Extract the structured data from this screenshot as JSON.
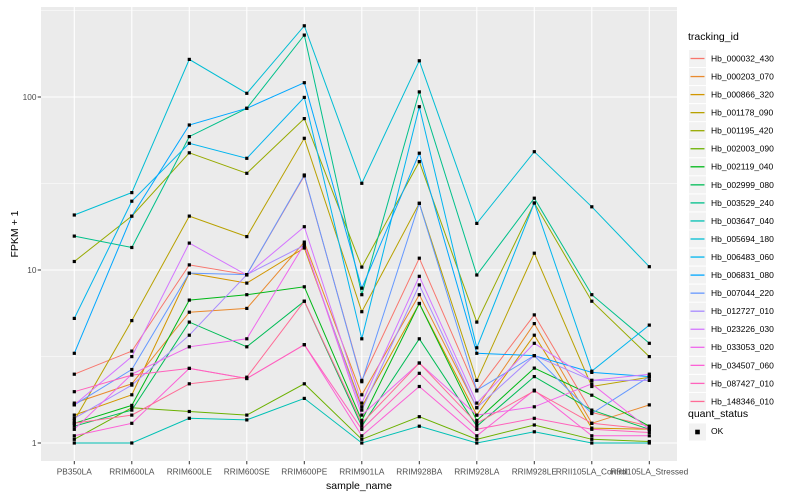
{
  "figure": {
    "background": "#FFFFFF",
    "panel_background": "#EBEBEB",
    "grid_color": "#FFFFFF",
    "axis_text_color": "#4D4D4D",
    "axis_title_color": "#000000",
    "legend_key_background": "#F2F2F2",
    "point_color": "#000000"
  },
  "legend": {
    "tracking_title": "tracking_id",
    "quant_title": "quant_status",
    "quant_items": [
      {
        "label": "OK",
        "marker": "filled-square-icon"
      }
    ]
  },
  "chart_data": {
    "type": "line",
    "title": "",
    "xlabel": "sample_name",
    "ylabel": "FPKM + 1",
    "y_scale": "log10",
    "ylim": [
      0.79,
      330
    ],
    "grid": true,
    "legend_position": "right",
    "point_shape": "filled-square",
    "y_ticks": {
      "values": [
        1,
        10,
        100
      ],
      "labels": [
        "1",
        "10",
        "100"
      ]
    },
    "y_minor_gridlines": [
      3.162,
      31.62,
      316.2
    ],
    "categories": [
      "PB350LA",
      "RRIM600LA",
      "RRIM600LE",
      "RRIM600SE",
      "RRIM600PE",
      "RRIM901LA",
      "RRIM928BA",
      "RRIM928LA",
      "RRIM928LE",
      "RRII105LA_Control",
      "RRII105LA_Stressed"
    ],
    "series": [
      {
        "name": "Hb_000032_430",
        "color": "#F8766D",
        "values": [
          2.5,
          3.4,
          10.7,
          9.4,
          35,
          2.3,
          11.7,
          2.0,
          5.5,
          1.5,
          1.25
        ]
      },
      {
        "name": "Hb_000203_070",
        "color": "#E98A2F",
        "values": [
          1.7,
          2.2,
          5.7,
          6.0,
          14.5,
          1.9,
          7.2,
          1.6,
          4.9,
          1.3,
          1.66
        ]
      },
      {
        "name": "Hb_000866_320",
        "color": "#D29600",
        "values": [
          1.45,
          1.9,
          9.6,
          8.4,
          13.4,
          1.62,
          6.4,
          1.45,
          4.2,
          1.22,
          1.2
        ]
      },
      {
        "name": "Hb_001178_090",
        "color": "#B8A100",
        "values": [
          1.35,
          5.1,
          20.5,
          15.6,
          57.7,
          5.74,
          24.3,
          2.3,
          12.5,
          2.12,
          2.4
        ]
      },
      {
        "name": "Hb_001195_420",
        "color": "#97AA00",
        "values": [
          11.2,
          20.5,
          47.6,
          36.2,
          75,
          10.4,
          42.3,
          5.0,
          24.4,
          6.6,
          3.16
        ]
      },
      {
        "name": "Hb_002003_090",
        "color": "#6BB100",
        "values": [
          1.05,
          1.6,
          1.52,
          1.45,
          2.2,
          1.05,
          1.42,
          1.05,
          1.27,
          1.05,
          1.02
        ]
      },
      {
        "name": "Hb_002119_040",
        "color": "#00B817",
        "values": [
          1.3,
          1.65,
          6.7,
          7.2,
          8.0,
          1.35,
          6.4,
          1.35,
          2.71,
          1.89,
          1.25
        ]
      },
      {
        "name": "Hb_002999_080",
        "color": "#00BC56",
        "values": [
          1.25,
          1.55,
          5.0,
          3.6,
          6.6,
          1.25,
          4.0,
          1.25,
          2.42,
          1.55,
          1.2
        ]
      },
      {
        "name": "Hb_003529_240",
        "color": "#00C08A",
        "values": [
          15.7,
          13.5,
          59,
          86,
          228,
          7.2,
          107,
          9.35,
          26,
          7.2,
          3.77
        ]
      },
      {
        "name": "Hb_003647_040",
        "color": "#00C0B4",
        "values": [
          1.0,
          1.0,
          1.39,
          1.36,
          1.81,
          1.0,
          1.25,
          1.0,
          1.16,
          1.0,
          1.0
        ]
      },
      {
        "name": "Hb_005694_180",
        "color": "#00BDD4",
        "values": [
          20.8,
          28,
          165,
          105,
          258,
          31.7,
          162,
          18.6,
          48.3,
          23.2,
          10.45
        ]
      },
      {
        "name": "Hb_006483_060",
        "color": "#00B5EE",
        "values": [
          5.25,
          25,
          54,
          44.2,
          99.5,
          4.0,
          87.9,
          3.55,
          24.4,
          2.6,
          4.8
        ]
      },
      {
        "name": "Hb_006831_080",
        "color": "#00A7FF",
        "values": [
          3.3,
          20.5,
          68.9,
          86,
          121,
          7.85,
          47.3,
          3.3,
          3.2,
          2.56,
          2.42
        ]
      },
      {
        "name": "Hb_007044_220",
        "color": "#6598FF",
        "values": [
          1.66,
          2.66,
          9.6,
          9.4,
          35.4,
          2.26,
          24.3,
          2.02,
          3.2,
          1.48,
          2.42
        ]
      },
      {
        "name": "Hb_012727_010",
        "color": "#A88AFF",
        "values": [
          1.39,
          2.16,
          4.2,
          9.4,
          13.9,
          1.55,
          8.2,
          1.6,
          3.2,
          2.3,
          2.3
        ]
      },
      {
        "name": "Hb_023226_030",
        "color": "#D475FF",
        "values": [
          1.66,
          3.16,
          14.3,
          9.35,
          17.8,
          1.7,
          9.2,
          1.7,
          3.77,
          2.3,
          2.5
        ]
      },
      {
        "name": "Hb_033053_020",
        "color": "#EF67EC",
        "values": [
          1.2,
          2.5,
          3.6,
          4.0,
          14.1,
          1.45,
          2.9,
          1.45,
          1.62,
          2.2,
          1.2
        ]
      },
      {
        "name": "Hb_034507_060",
        "color": "#FC61D6",
        "values": [
          1.1,
          1.3,
          2.7,
          2.36,
          3.7,
          1.1,
          2.12,
          1.1,
          2.02,
          1.1,
          1.1
        ]
      },
      {
        "name": "Hb_087427_010",
        "color": "#FF62BC",
        "values": [
          1.98,
          2.47,
          2.7,
          2.36,
          3.7,
          1.2,
          2.53,
          1.2,
          1.39,
          1.2,
          1.15
        ]
      },
      {
        "name": "Hb_148346_010",
        "color": "#FF6B96",
        "values": [
          1.3,
          1.45,
          2.2,
          2.4,
          6.6,
          1.3,
          2.9,
          1.3,
          2.0,
          1.3,
          1.2
        ]
      }
    ]
  }
}
